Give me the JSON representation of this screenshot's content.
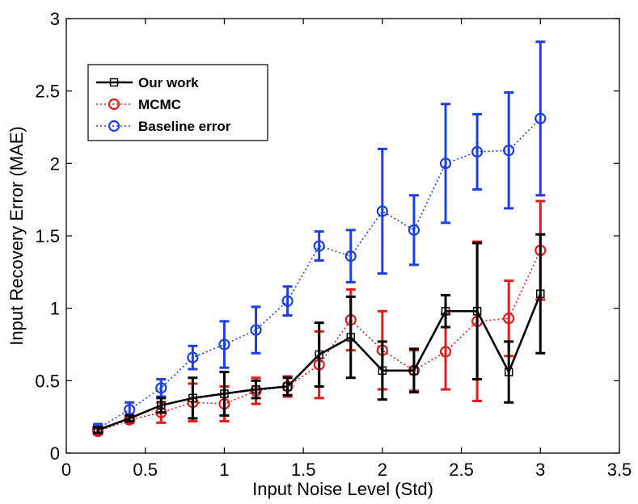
{
  "chart_data": {
    "type": "line",
    "title": "",
    "xlabel": "Input Noise Level (Std)",
    "ylabel": "Input Recovery Error (MAE)",
    "xlim": [
      0,
      3.5
    ],
    "ylim": [
      0,
      3
    ],
    "xticks": [
      0,
      0.5,
      1,
      1.5,
      2,
      2.5,
      3,
      3.5
    ],
    "xtick_labels": [
      "0",
      "0.5",
      "1",
      "1.5",
      "2",
      "2.5",
      "3",
      "3.5"
    ],
    "yticks": [
      0,
      0.5,
      1,
      1.5,
      2,
      2.5,
      3
    ],
    "ytick_labels": [
      "0",
      "0.5",
      "1",
      "1.5",
      "2",
      "2.5",
      "3"
    ],
    "grid": false,
    "legend_position": "top-left",
    "x": [
      0.2,
      0.4,
      0.6,
      0.8,
      1.0,
      1.2,
      1.4,
      1.6,
      1.8,
      2.0,
      2.2,
      2.4,
      2.6,
      2.8,
      3.0
    ],
    "series": [
      {
        "name": "Our work",
        "color": "#000000",
        "line_style": "solid",
        "marker": "square",
        "values": [
          0.16,
          0.24,
          0.33,
          0.38,
          0.41,
          0.44,
          0.46,
          0.68,
          0.8,
          0.57,
          0.57,
          0.98,
          0.98,
          0.56,
          1.1
        ],
        "errors": [
          0.02,
          0.02,
          0.05,
          0.14,
          0.15,
          0.06,
          0.06,
          0.22,
          0.28,
          0.2,
          0.15,
          0.11,
          0.47,
          0.21,
          0.41
        ]
      },
      {
        "name": "MCMC",
        "color": "#e31a1c",
        "line_style": "dotted",
        "marker": "circle",
        "values": [
          0.15,
          0.23,
          0.28,
          0.35,
          0.34,
          0.43,
          0.46,
          0.61,
          0.92,
          0.71,
          0.57,
          0.7,
          0.91,
          0.93,
          1.4
        ],
        "errors": [
          0.02,
          0.02,
          0.07,
          0.13,
          0.12,
          0.09,
          0.07,
          0.23,
          0.21,
          0.27,
          0.14,
          0.26,
          0.55,
          0.26,
          0.34
        ]
      },
      {
        "name": "Baseline error",
        "color": "#1f3fe6",
        "line_style": "dotted",
        "marker": "circle",
        "values": [
          0.17,
          0.3,
          0.45,
          0.66,
          0.75,
          0.85,
          1.05,
          1.43,
          1.36,
          1.67,
          1.54,
          2.0,
          2.08,
          2.09,
          2.31
        ],
        "errors": [
          0.03,
          0.05,
          0.06,
          0.08,
          0.16,
          0.16,
          0.1,
          0.1,
          0.18,
          0.43,
          0.24,
          0.41,
          0.26,
          0.4,
          0.53
        ]
      }
    ]
  }
}
